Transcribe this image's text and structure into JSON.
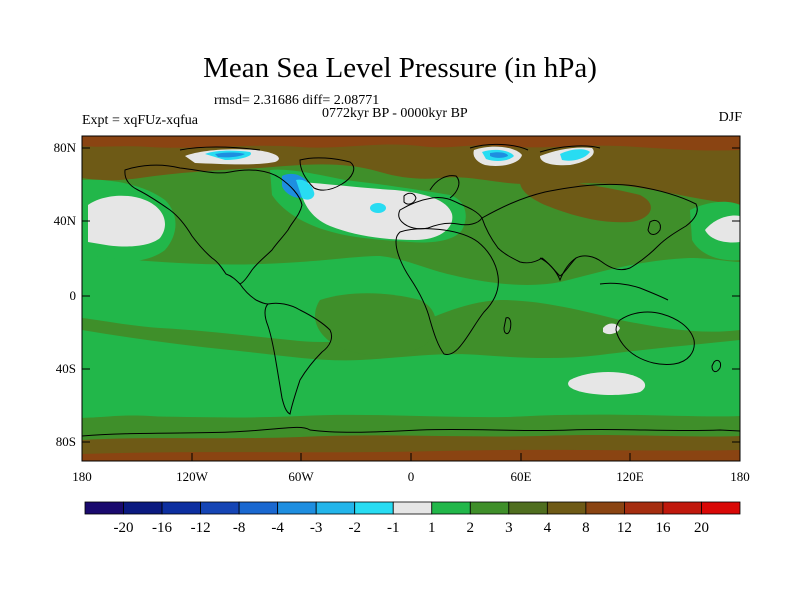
{
  "title": "Mean Sea Level Pressure (in hPa)",
  "stats": "rmsd= 2.31686 diff= 2.08771",
  "period": "0772kyr BP - 0000kyr BP",
  "experiment": "Expt = xqFUz-xqfua",
  "season": "DJF",
  "lat_labels": [
    "80N",
    "40N",
    "0",
    "40S",
    "80S"
  ],
  "lon_labels": [
    "180",
    "120W",
    "60W",
    "0",
    "60E",
    "120E",
    "180"
  ],
  "colorbar": {
    "labels": [
      "-20",
      "-16",
      "-12",
      "-8",
      "-4",
      "-3",
      "-2",
      "-1",
      "1",
      "2",
      "3",
      "4",
      "8",
      "12",
      "16",
      "20"
    ],
    "colors": [
      "#1a0a6e",
      "#0b1a80",
      "#0d2fa0",
      "#1545b5",
      "#1a68d0",
      "#1e8ee0",
      "#23b5ea",
      "#28dcf2",
      "#e6e6e6",
      "#22b74a",
      "#3f8f2a",
      "#4f6e1f",
      "#6e5a16",
      "#8a4412",
      "#a52d10",
      "#c0180c",
      "#d90806"
    ]
  },
  "colors": {
    "green_light": "#22b74a",
    "green_mid": "#3f8f2a",
    "green_dark": "#4f6e1f",
    "brown": "#6e5a16",
    "rust": "#8a4412",
    "white": "#e6e6e6",
    "cyan": "#28dcf2",
    "blue": "#1e8ee0"
  }
}
